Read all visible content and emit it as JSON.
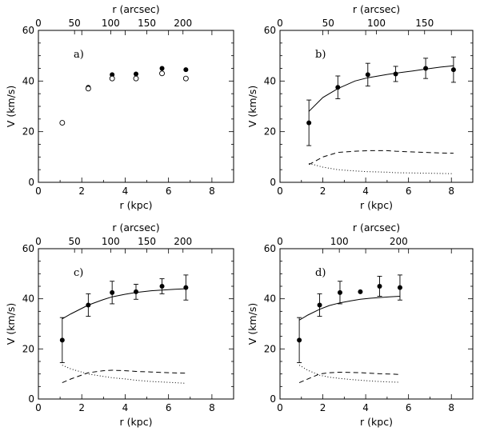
{
  "chart_data": [
    {
      "type": "scatter",
      "panel_label": "a)",
      "xlabel": "r (kpc)",
      "x2label": "r (arcsec)",
      "ylabel": "V (km/s)",
      "xlim": [
        0,
        9
      ],
      "x2lim": [
        0,
        270
      ],
      "ylim": [
        0,
        60
      ],
      "xticks": [
        0,
        2,
        4,
        6,
        8
      ],
      "x2ticks": [
        0,
        50,
        100,
        150,
        200
      ],
      "yticks": [
        0,
        20,
        40,
        60
      ],
      "series": [
        {
          "style": "filled",
          "x": [
            1.1,
            2.3,
            3.4,
            4.5,
            5.7,
            6.8
          ],
          "y": [
            23.5,
            37.5,
            42.5,
            42.8,
            45.0,
            44.5
          ]
        },
        {
          "style": "open",
          "x": [
            1.1,
            2.3,
            3.4,
            4.5,
            5.7,
            6.8
          ],
          "y": [
            23.5,
            37.0,
            41.0,
            41.0,
            43.0,
            41.0
          ]
        }
      ]
    },
    {
      "type": "scatter",
      "panel_label": "b)",
      "xlabel": "r (kpc)",
      "x2label": "r (arcsec)",
      "ylabel": "V (km/s)",
      "xlim": [
        0,
        9
      ],
      "x2lim": [
        0,
        200
      ],
      "ylim": [
        0,
        60
      ],
      "xticks": [
        0,
        2,
        4,
        6,
        8
      ],
      "x2ticks": [
        0,
        50,
        100,
        150
      ],
      "yticks": [
        0,
        20,
        40,
        60
      ],
      "series": [
        {
          "style": "filled",
          "x": [
            1.35,
            2.7,
            4.1,
            5.4,
            6.8,
            8.1
          ],
          "y": [
            23.5,
            37.5,
            42.5,
            42.8,
            45.0,
            44.5
          ],
          "err": [
            9,
            4.5,
            4.5,
            3,
            4,
            5
          ]
        },
        {
          "style": "fit",
          "x": [
            1.35,
            2.0,
            2.7,
            3.5,
            4.1,
            5.0,
            5.4,
            6.2,
            6.8,
            7.5,
            8.1
          ],
          "y": [
            28,
            33.5,
            37,
            40,
            41.3,
            42.6,
            43.1,
            44,
            44.7,
            45.5,
            46
          ]
        },
        {
          "style": "dash",
          "x": [
            1.35,
            2.0,
            2.7,
            3.5,
            4.1,
            5.0,
            5.4,
            6.2,
            6.8,
            7.5,
            8.1
          ],
          "y": [
            7,
            10,
            11.8,
            12.3,
            12.5,
            12.5,
            12.3,
            12.0,
            11.8,
            11.6,
            11.5
          ]
        },
        {
          "style": "dot",
          "x": [
            1.35,
            2.0,
            2.7,
            3.5,
            4.1,
            5.0,
            5.4,
            6.2,
            6.8,
            7.5,
            8.1
          ],
          "y": [
            7.5,
            6,
            5,
            4.5,
            4.2,
            4.0,
            3.8,
            3.7,
            3.6,
            3.5,
            3.4
          ]
        }
      ]
    },
    {
      "type": "scatter",
      "panel_label": "c)",
      "xlabel": "r (kpc)",
      "x2label": "r (arcsec)",
      "ylabel": "V (km/s)",
      "xlim": [
        0,
        9
      ],
      "x2lim": [
        0,
        270
      ],
      "ylim": [
        0,
        60
      ],
      "xticks": [
        0,
        2,
        4,
        6,
        8
      ],
      "x2ticks": [
        0,
        50,
        100,
        150,
        200
      ],
      "yticks": [
        0,
        20,
        40,
        60
      ],
      "series": [
        {
          "style": "filled",
          "x": [
            1.1,
            2.3,
            3.4,
            4.5,
            5.7,
            6.8
          ],
          "y": [
            23.5,
            37.5,
            42.5,
            42.8,
            45.0,
            44.5
          ],
          "err": [
            9,
            4.5,
            4.5,
            3,
            3,
            5
          ]
        },
        {
          "style": "fit",
          "x": [
            1.1,
            1.5,
            2.3,
            3.0,
            3.4,
            4.0,
            4.5,
            5.2,
            5.7,
            6.3,
            6.8
          ],
          "y": [
            32,
            34,
            37.5,
            39.7,
            40.8,
            41.8,
            42.5,
            43.2,
            43.5,
            43.8,
            44
          ]
        },
        {
          "style": "dash",
          "x": [
            1.1,
            1.5,
            2.3,
            3.0,
            3.4,
            4.0,
            4.5,
            5.2,
            5.7,
            6.3,
            6.8
          ],
          "y": [
            6.5,
            8,
            10.5,
            11.3,
            11.5,
            11.3,
            11,
            10.8,
            10.6,
            10.4,
            10.3
          ]
        },
        {
          "style": "dot",
          "x": [
            1.1,
            1.5,
            2.3,
            3.0,
            3.4,
            4.0,
            4.5,
            5.2,
            5.7,
            6.3,
            6.8
          ],
          "y": [
            13.5,
            12,
            10,
            9,
            8.5,
            8,
            7.5,
            7,
            6.8,
            6.5,
            6.3
          ]
        }
      ]
    },
    {
      "type": "scatter",
      "panel_label": "d)",
      "xlabel": "r (kpc)",
      "x2label": "r (arcsec)",
      "ylabel": "V (km/s)",
      "xlim": [
        0,
        9
      ],
      "x2lim": [
        0,
        325
      ],
      "ylim": [
        0,
        60
      ],
      "xticks": [
        0,
        2,
        4,
        6,
        8
      ],
      "x2ticks": [
        0,
        100,
        200
      ],
      "yticks": [
        0,
        20,
        40,
        60
      ],
      "series": [
        {
          "style": "filled",
          "x": [
            0.9,
            1.85,
            2.8,
            3.75,
            4.65,
            5.6
          ],
          "y": [
            23.5,
            37.5,
            42.5,
            42.8,
            45.0,
            44.5
          ],
          "err": [
            9,
            4.5,
            4.5,
            0,
            4,
            5
          ]
        },
        {
          "style": "fit",
          "x": [
            0.9,
            1.3,
            1.85,
            2.3,
            2.8,
            3.3,
            3.75,
            4.2,
            4.65,
            5.1,
            5.6
          ],
          "y": [
            31.5,
            33.5,
            35.8,
            37.3,
            38.4,
            39.2,
            39.8,
            40.2,
            40.5,
            40.8,
            41
          ]
        },
        {
          "style": "dash",
          "x": [
            0.9,
            1.3,
            1.85,
            2.3,
            2.8,
            3.3,
            3.75,
            4.2,
            4.65,
            5.1,
            5.6
          ],
          "y": [
            6.5,
            8,
            10,
            10.5,
            10.7,
            10.6,
            10.5,
            10.3,
            10.1,
            10.0,
            9.8
          ]
        },
        {
          "style": "dot",
          "x": [
            0.9,
            1.3,
            1.85,
            2.3,
            2.8,
            3.3,
            3.75,
            4.2,
            4.65,
            5.1,
            5.6
          ],
          "y": [
            13.5,
            11.5,
            9.5,
            8.7,
            8.2,
            7.8,
            7.5,
            7.2,
            7.0,
            6.8,
            6.7
          ]
        }
      ]
    }
  ]
}
